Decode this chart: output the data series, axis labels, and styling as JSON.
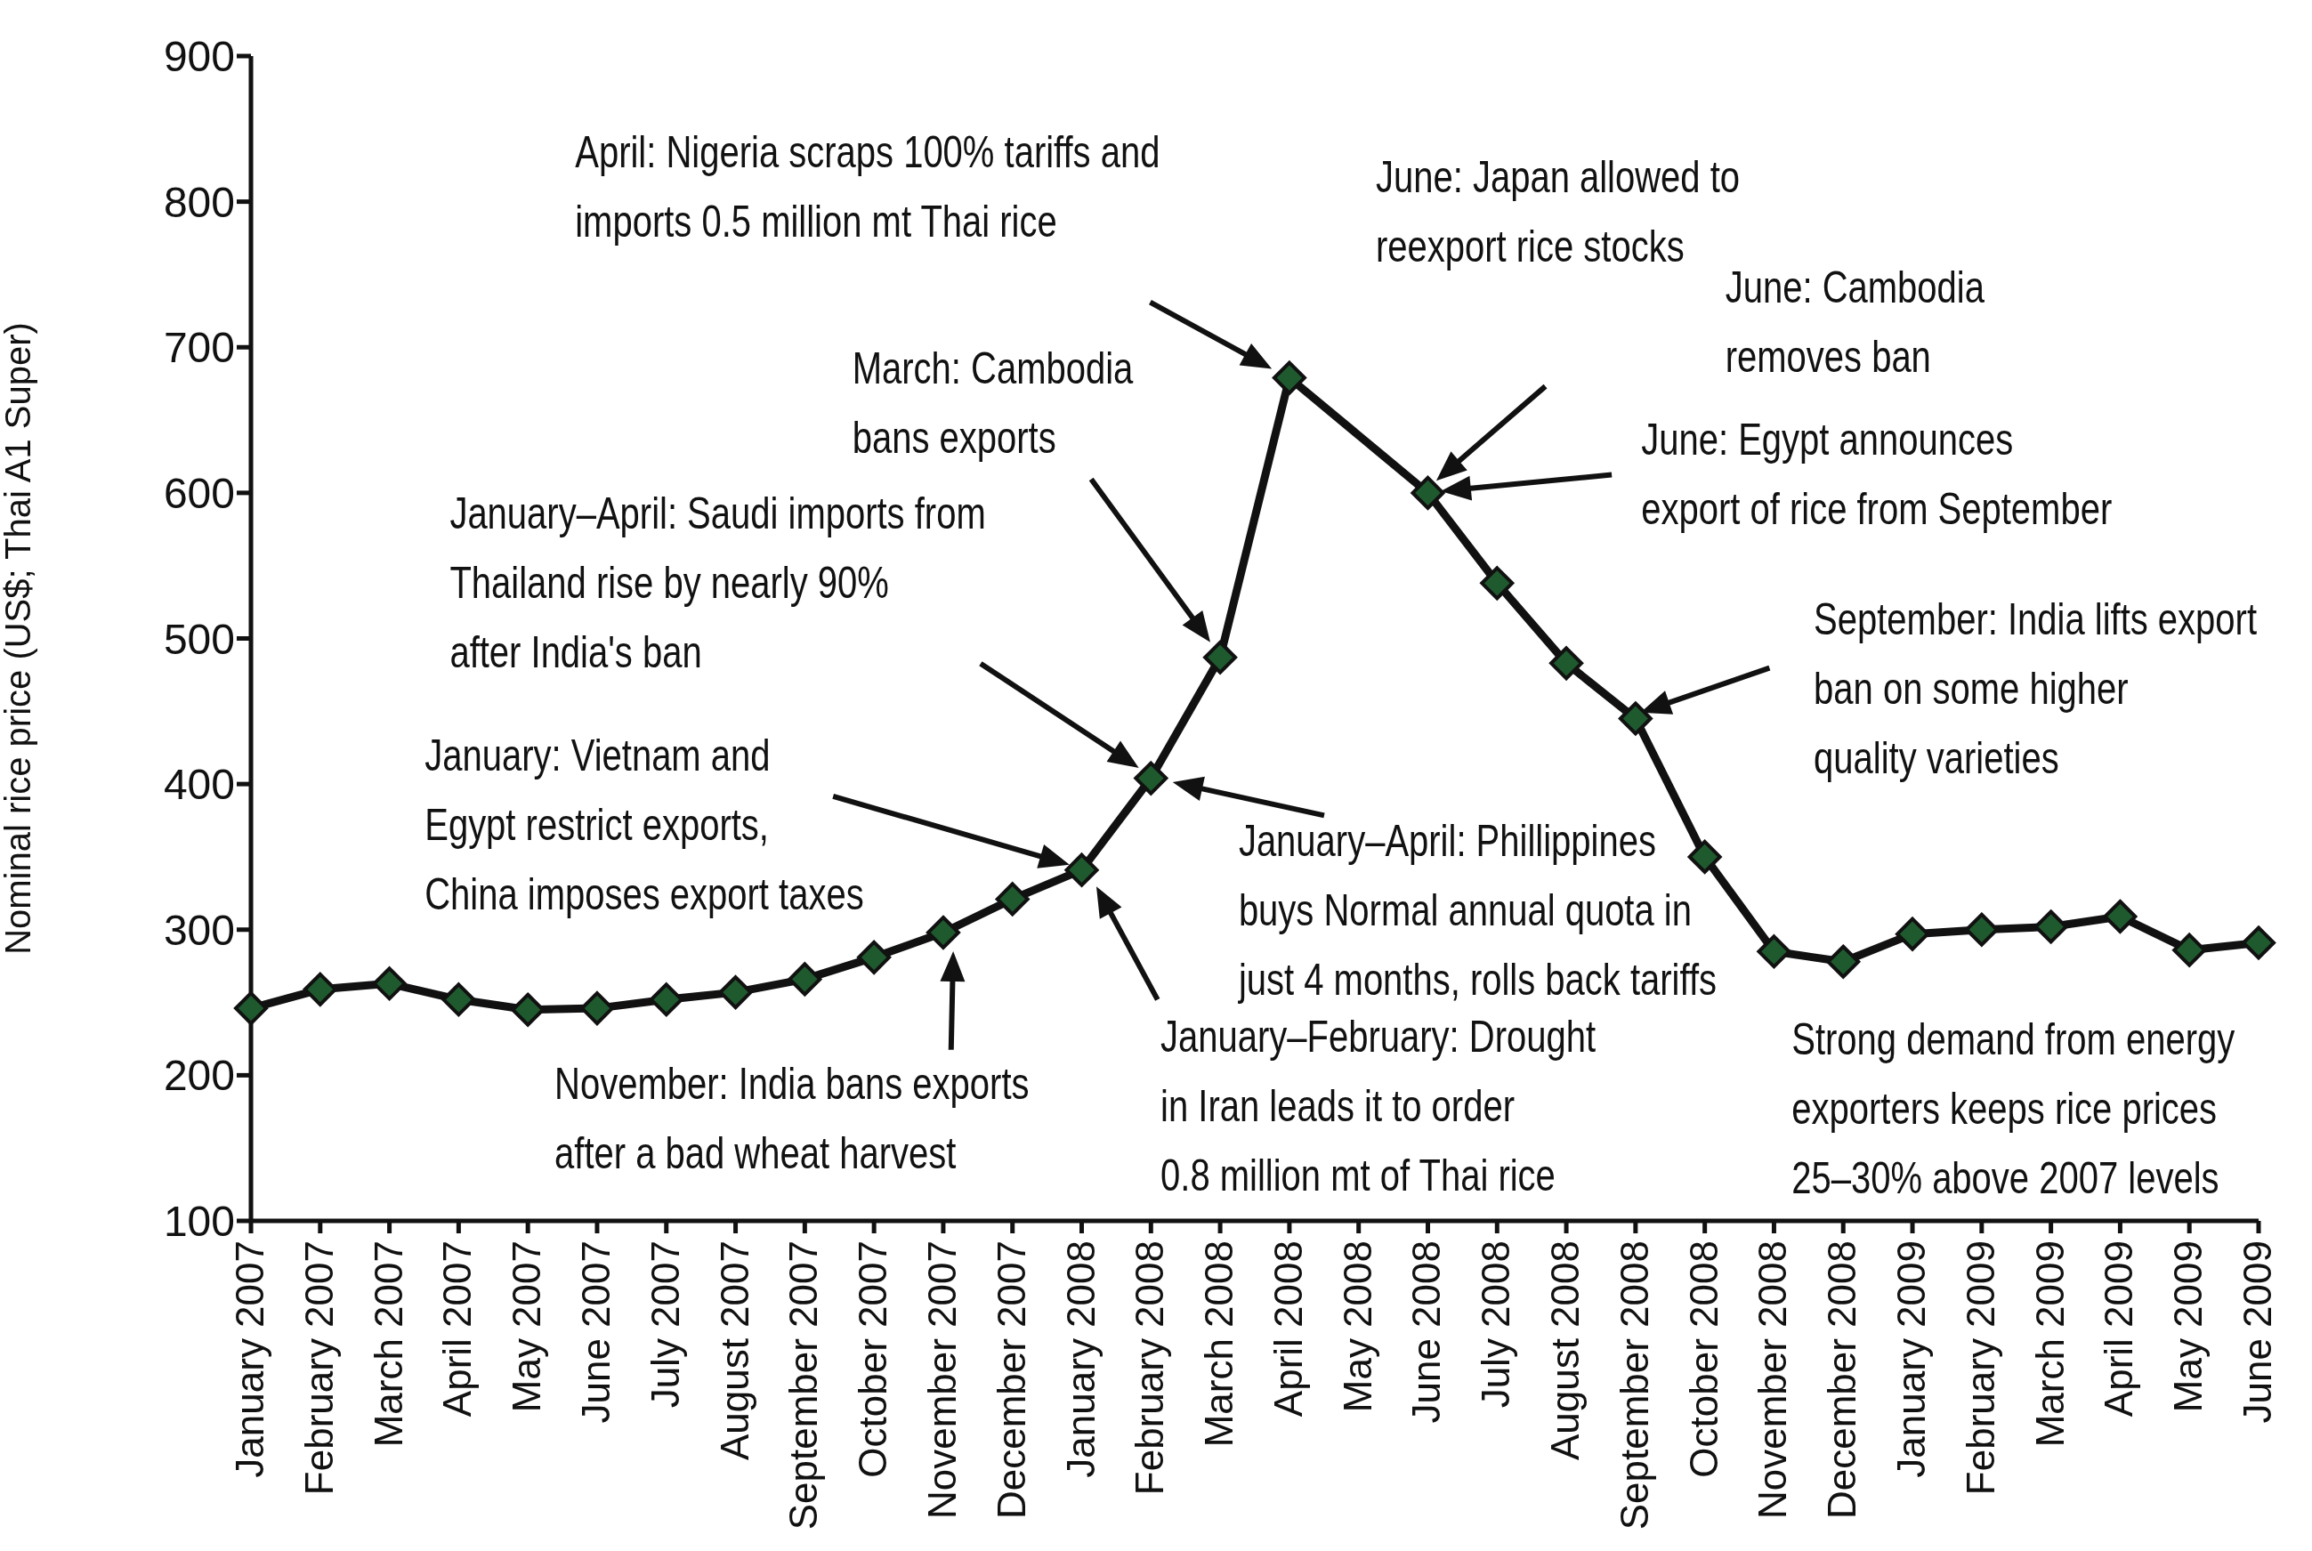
{
  "chart_data": {
    "type": "line",
    "ylabel": "Nominal rice price (US$; Thai A1 Super)",
    "categories": [
      "January 2007",
      "February 2007",
      "March 2007",
      "April 2007",
      "May 2007",
      "June 2007",
      "July 2007",
      "August 2007",
      "September 2007",
      "October 2007",
      "November 2007",
      "December 2007",
      "January 2008",
      "February 2008",
      "March 2008",
      "April 2008",
      "May 2008",
      "June 2008",
      "July 2008",
      "August 2008",
      "September 2008",
      "October 2008",
      "November 2008",
      "December 2008",
      "January 2009",
      "February 2009",
      "March 2009",
      "April 2009",
      "May 2009",
      "June 2009"
    ],
    "series": [
      {
        "color": "#111111",
        "values": [
          246,
          259,
          263,
          252,
          245,
          246,
          252,
          257,
          266,
          281,
          298,
          321,
          341,
          404,
          487,
          679,
          null,
          600,
          538,
          483,
          445,
          350,
          285,
          278,
          297,
          300,
          302,
          309,
          286,
          291
        ]
      }
    ],
    "ylim": [
      100,
      900
    ],
    "yticks": [
      100,
      200,
      300,
      400,
      500,
      600,
      700,
      800,
      900
    ],
    "grid": false,
    "legend": false,
    "marker": "diamond",
    "line_style": "solid",
    "annotations": [
      "January: Vietnam and\nEgypt restrict exports,\nChina imposes export taxes",
      {
        "text": "November: India bans exports\nafter a bad wheat harvest",
        "x": "November 2007",
        "y": 298
      },
      "January–February: Drought\nin Iran leads it to order\n0.8 million mt of Thai rice",
      "January–April: Saudi imports from\nThailand rise by nearly 90%\nafter India's ban",
      {
        "text": "January–April: Phillippines\nbuys Normal annual quota in\njust 4 months, rolls back tariffs",
        "x": "February 2008",
        "y": 404
      },
      "March: Cambodia\nbans exports",
      "April: Nigeria scraps 100% tariffs and\nimports 0.5 million mt Thai rice",
      "June: Japan allowed to\nreexport rice stocks",
      "June: Cambodia\nremoves ban",
      "June: Egypt announces\nexport of rice from September",
      "September: India lifts export\nban on some higher\nquality varieties",
      "Strong demand from energy\nexporters keeps rice prices\n25–30% above 2007 levels"
    ]
  }
}
